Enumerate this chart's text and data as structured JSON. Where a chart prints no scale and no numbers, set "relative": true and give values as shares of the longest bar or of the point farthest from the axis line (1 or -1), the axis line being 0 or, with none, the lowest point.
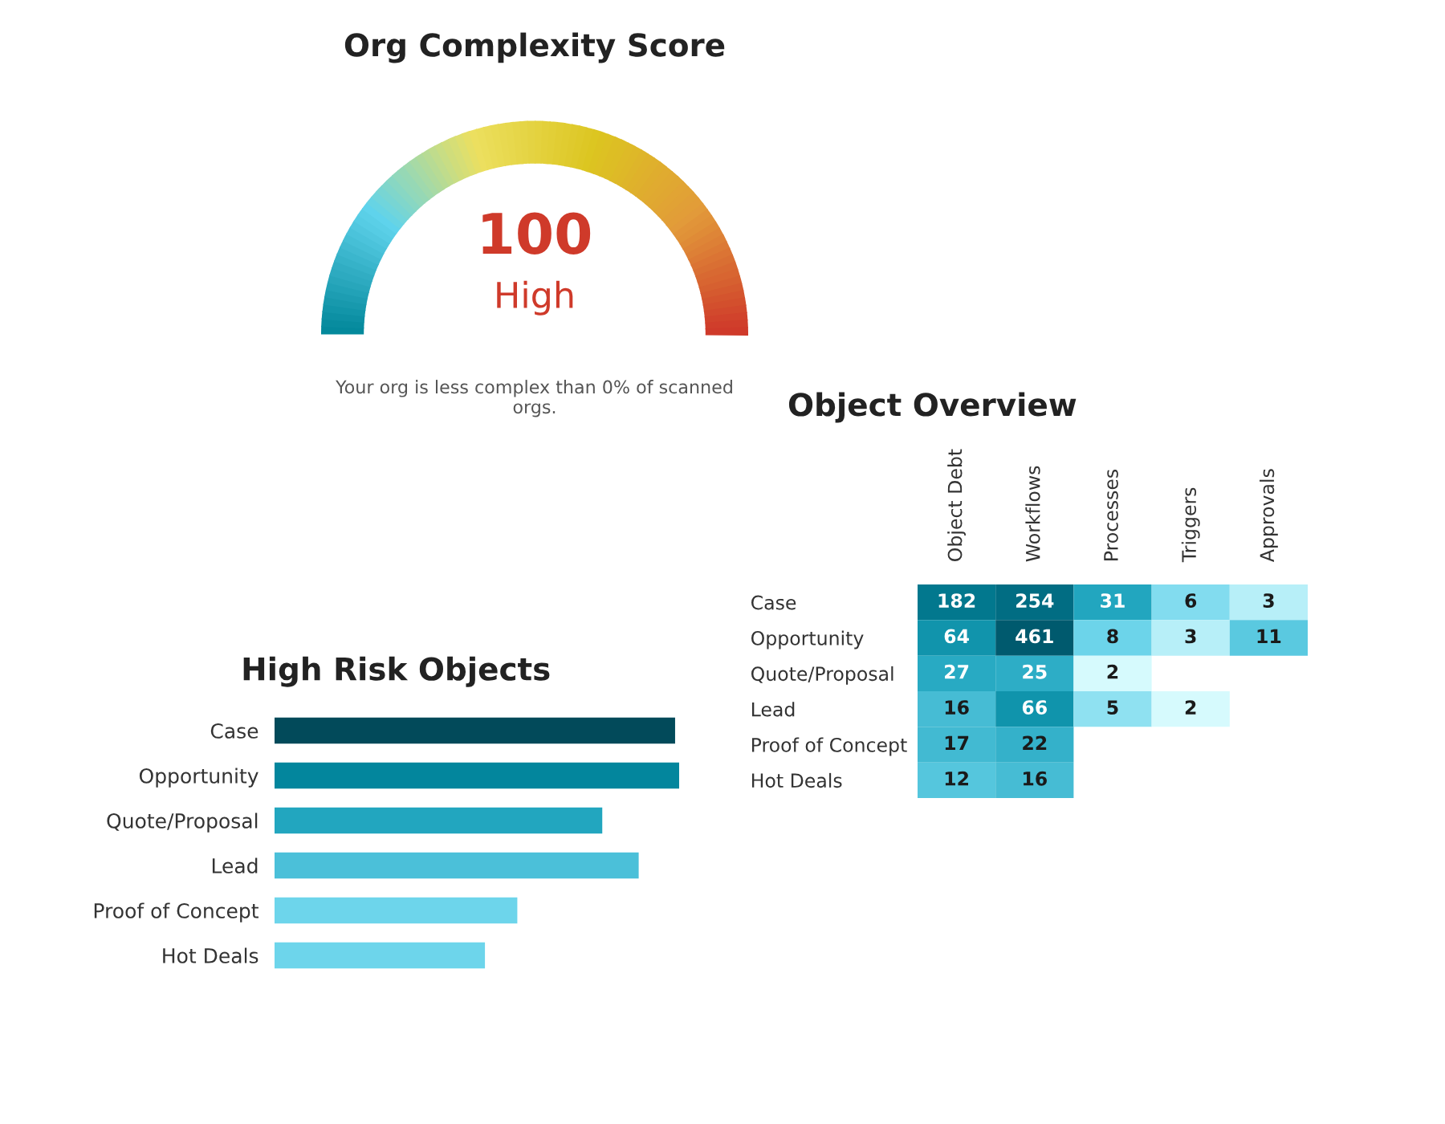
{
  "chart_data": [
    {
      "type": "other",
      "title": "Org Complexity Score",
      "annotations": [
        "100",
        "High",
        "Your org is less complex than 0% of scanned orgs."
      ]
    },
    {
      "type": "bar",
      "orientation": "horizontal",
      "relative": true,
      "title": "High Risk Objects",
      "categories": [
        "Case",
        "Opportunity",
        "Quote/Proposal",
        "Lead",
        "Proof of Concept",
        "Hot Deals"
      ],
      "values": [
        0.99,
        1,
        0.81,
        0.9,
        0.6,
        0.52
      ],
      "colors": [
        "#024a5a",
        "#03869d",
        "#22a6bf",
        "#4bc0d9",
        "#6dd5eb",
        "#6dd5eb"
      ]
    },
    {
      "type": "heatmap",
      "title": "Object Overview",
      "data_labels": true,
      "categories": [
        "Object Debt",
        "Workflows",
        "Processes",
        "Triggers",
        "Approvals"
      ],
      "y_categories": [
        "Case",
        "Opportunity",
        "Quote/Proposal",
        "Lead",
        "Proof of Concept",
        "Hot Deals"
      ],
      "cells": [
        [
          182,
          254,
          31,
          6,
          3
        ],
        [
          64,
          461,
          8,
          3,
          11
        ],
        [
          27,
          25,
          2,
          null,
          null
        ],
        [
          16,
          66,
          5,
          2,
          null
        ],
        [
          17,
          22,
          null,
          null,
          null
        ],
        [
          12,
          16,
          null,
          null,
          null
        ]
      ]
    }
  ]
}
